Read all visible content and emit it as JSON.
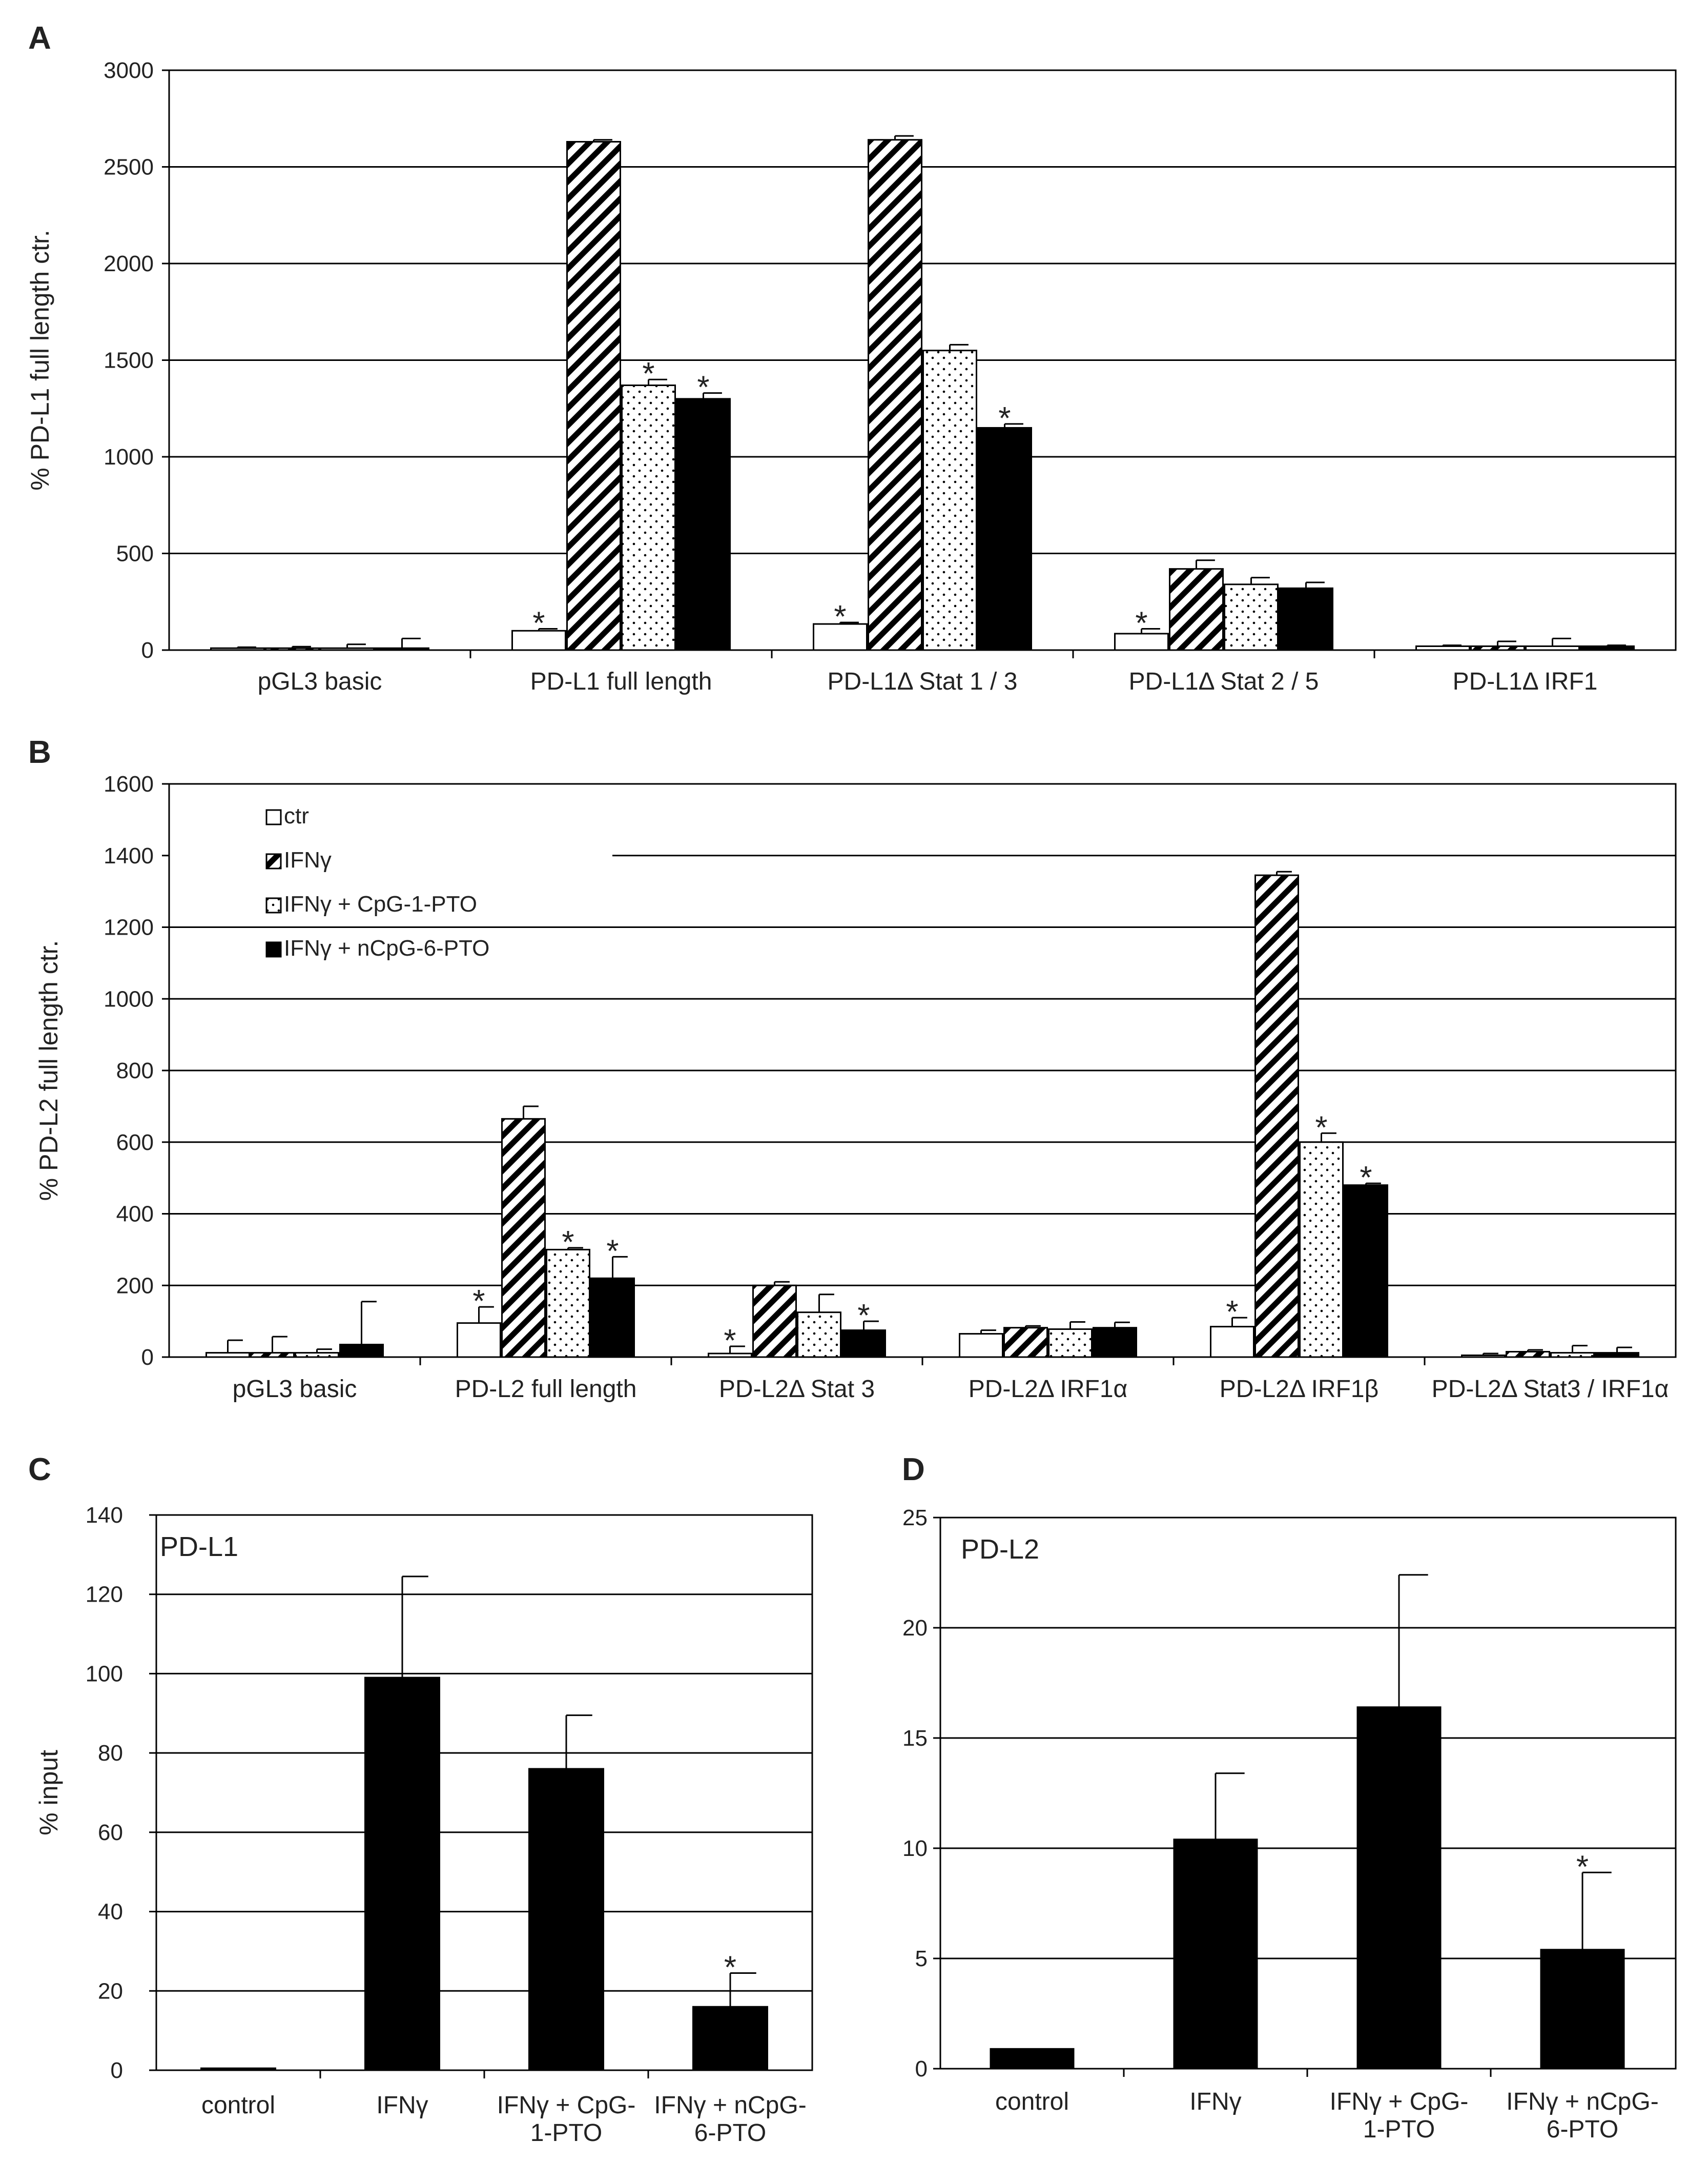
{
  "chart_data": [
    {
      "id": "A",
      "type": "bar",
      "panel_letter": "A",
      "ylabel": "% PD-L1  full length ctr.",
      "ylim": [
        0,
        3000
      ],
      "yticks": [
        0,
        500,
        1000,
        1500,
        2000,
        2500,
        3000
      ],
      "grid": true,
      "categories": [
        "pGL3 basic",
        "PD-L1 full length",
        "PD-L1Δ  Stat 1 / 3",
        "PD-L1Δ  Stat 2 / 5",
        "PD-L1Δ  IRF1"
      ],
      "series": [
        {
          "name": "ctr",
          "pattern": "white",
          "values": [
            10,
            100,
            135,
            85,
            20
          ],
          "errors": [
            5,
            10,
            8,
            25,
            5
          ],
          "significant": [
            false,
            true,
            true,
            true,
            false
          ]
        },
        {
          "name": "IFNγ",
          "pattern": "hatch",
          "values": [
            10,
            2630,
            2640,
            420,
            20
          ],
          "errors": [
            8,
            10,
            20,
            45,
            25
          ],
          "significant": [
            false,
            false,
            false,
            false,
            false
          ]
        },
        {
          "name": "IFNγ + CpG-1-PTO",
          "pattern": "dots",
          "values": [
            10,
            1370,
            1550,
            340,
            20
          ],
          "errors": [
            20,
            30,
            30,
            35,
            40
          ],
          "significant": [
            false,
            true,
            false,
            false,
            false
          ]
        },
        {
          "name": "IFNγ + nCpG-6-PTO",
          "pattern": "black",
          "values": [
            10,
            1300,
            1150,
            320,
            20
          ],
          "errors": [
            50,
            30,
            20,
            30,
            5
          ],
          "significant": [
            false,
            true,
            true,
            false,
            false
          ]
        }
      ]
    },
    {
      "id": "B",
      "type": "bar",
      "panel_letter": "B",
      "ylabel": "% PD-L2 full length ctr.",
      "ylim": [
        0,
        1600
      ],
      "yticks": [
        0,
        200,
        400,
        600,
        800,
        1000,
        1200,
        1400,
        1600
      ],
      "grid": true,
      "legend_position": "top-left",
      "legend": [
        "ctr",
        "IFNγ",
        "IFNγ + CpG-1-PTO",
        "IFNγ + nCpG-6-PTO"
      ],
      "categories": [
        "pGL3 basic",
        "PD-L2 full length",
        "PD-L2Δ  Stat 3",
        "PD-L2Δ  IRF1α",
        "PD-L2Δ  IRF1β",
        "PD-L2Δ  Stat3 / IRF1α"
      ],
      "series": [
        {
          "name": "ctr",
          "pattern": "white",
          "values": [
            12,
            95,
            10,
            65,
            85,
            5
          ],
          "errors": [
            35,
            45,
            20,
            10,
            25,
            5
          ],
          "significant": [
            false,
            true,
            true,
            false,
            true,
            false
          ]
        },
        {
          "name": "IFNγ",
          "pattern": "hatch",
          "values": [
            12,
            665,
            200,
            82,
            1345,
            15
          ],
          "errors": [
            45,
            35,
            10,
            5,
            10,
            5
          ],
          "significant": [
            false,
            false,
            false,
            false,
            false,
            false
          ]
        },
        {
          "name": "IFNγ + CpG-1-PTO",
          "pattern": "dots",
          "values": [
            12,
            300,
            125,
            78,
            600,
            12
          ],
          "errors": [
            10,
            5,
            50,
            20,
            25,
            20
          ],
          "significant": [
            false,
            true,
            false,
            false,
            true,
            false
          ]
        },
        {
          "name": "IFNγ + nCpG-6-PTO",
          "pattern": "black",
          "values": [
            35,
            220,
            75,
            82,
            480,
            12
          ],
          "errors": [
            120,
            60,
            25,
            15,
            5,
            15
          ],
          "significant": [
            false,
            true,
            true,
            false,
            true,
            false
          ]
        }
      ]
    },
    {
      "id": "C",
      "type": "bar",
      "panel_letter": "C",
      "inner_label": "PD-L1",
      "ylabel": "% input",
      "ylim": [
        0,
        140
      ],
      "yticks": [
        0,
        20,
        40,
        60,
        80,
        100,
        120,
        140
      ],
      "grid": true,
      "categories": [
        [
          "control"
        ],
        [
          "IFNγ"
        ],
        [
          "IFNγ  + CpG-",
          "1-PTO"
        ],
        [
          "IFNγ  + nCpG-",
          "6-PTO"
        ]
      ],
      "series": [
        {
          "name": "% input",
          "pattern": "black",
          "values": [
            0.5,
            99,
            76,
            16
          ],
          "errors": [
            0,
            25.5,
            13.5,
            8.5
          ],
          "significant": [
            false,
            false,
            false,
            true
          ]
        }
      ]
    },
    {
      "id": "D",
      "type": "bar",
      "panel_letter": "D",
      "inner_label": "PD-L2",
      "ylabel": "",
      "ylim": [
        0,
        25
      ],
      "yticks": [
        0,
        5,
        10,
        15,
        20,
        25
      ],
      "grid": true,
      "categories": [
        [
          "control"
        ],
        [
          "IFNγ"
        ],
        [
          "IFNγ  + CpG-",
          "1-PTO"
        ],
        [
          "IFNγ  + nCpG-",
          "6-PTO"
        ]
      ],
      "series": [
        {
          "name": "% input",
          "pattern": "black",
          "values": [
            0.9,
            10.4,
            16.4,
            5.4
          ],
          "errors": [
            0,
            3,
            6,
            3.5
          ],
          "significant": [
            false,
            false,
            false,
            true
          ]
        }
      ]
    }
  ],
  "significance_marker": "*"
}
